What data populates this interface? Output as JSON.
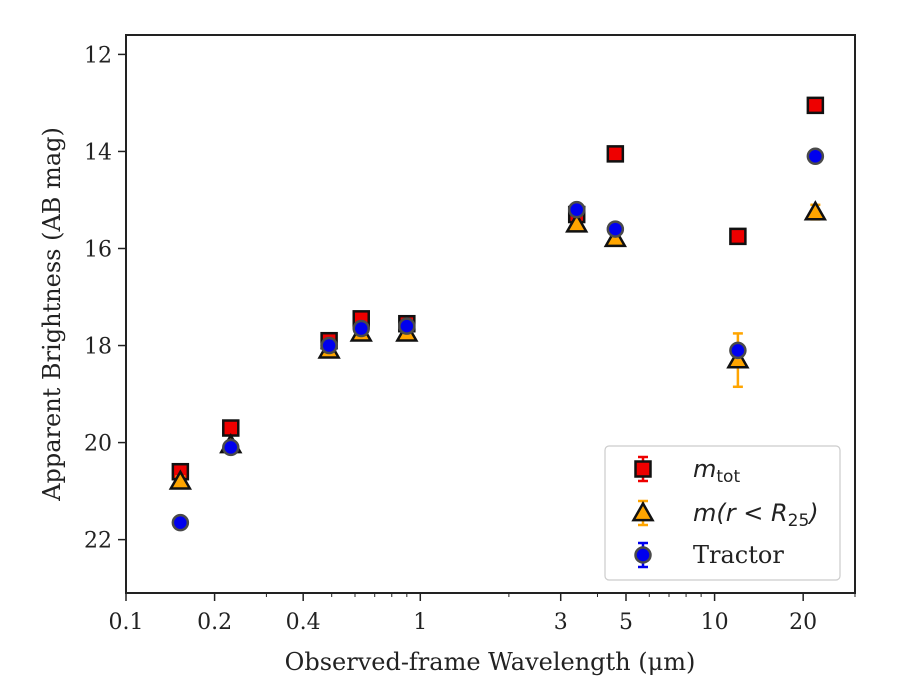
{
  "chart_data": {
    "type": "scatter",
    "xlabel": "Observed-frame Wavelength (μm)",
    "ylabel": "Apparent Brightness (AB mag)",
    "xscale": "log",
    "xlim": [
      0.1,
      30
    ],
    "ylim": [
      23.1,
      11.6
    ],
    "y_inverted": true,
    "grid": false,
    "legend_position": "bottom-right",
    "x_ticks": [
      {
        "value": 0.1,
        "label": "0.1"
      },
      {
        "value": 0.2,
        "label": "0.2"
      },
      {
        "value": 0.4,
        "label": "0.4"
      },
      {
        "value": 1,
        "label": "1"
      },
      {
        "value": 3,
        "label": "3"
      },
      {
        "value": 5,
        "label": "5"
      },
      {
        "value": 10,
        "label": "10"
      },
      {
        "value": 20,
        "label": "20"
      }
    ],
    "y_ticks": [
      {
        "value": 12,
        "label": "12"
      },
      {
        "value": 14,
        "label": "14"
      },
      {
        "value": 16,
        "label": "16"
      },
      {
        "value": 18,
        "label": "18"
      },
      {
        "value": 20,
        "label": "20"
      },
      {
        "value": 22,
        "label": "22"
      }
    ],
    "series": [
      {
        "name": "m_tot",
        "legend_main": "m",
        "legend_sub": "tot",
        "marker": "square",
        "color": "#ee0000",
        "x": [
          0.153,
          0.227,
          0.49,
          0.63,
          0.9,
          3.4,
          4.6,
          12.0,
          22.0
        ],
        "y": [
          20.6,
          19.7,
          17.9,
          17.45,
          17.55,
          15.3,
          14.05,
          15.75,
          13.05
        ],
        "yerr": [
          0.15,
          0.08,
          0.05,
          0.05,
          0.05,
          0.05,
          0.05,
          0.05,
          0.05
        ]
      },
      {
        "name": "m(r < R25)",
        "legend_main": "m(r < R",
        "legend_sub": "25",
        "legend_close": ")",
        "marker": "triangle",
        "color": "#ffa500",
        "x": [
          0.153,
          0.227,
          0.49,
          0.63,
          0.9,
          3.4,
          4.6,
          12.0,
          22.0
        ],
        "y": [
          20.8,
          20.05,
          18.1,
          17.75,
          17.75,
          15.5,
          15.8,
          18.3,
          15.25
        ],
        "yerr": [
          0.1,
          0.06,
          0.05,
          0.05,
          0.05,
          0.05,
          0.05,
          0.55,
          0.15
        ]
      },
      {
        "name": "Tractor",
        "legend_main": "Tractor",
        "marker": "circle",
        "color": "#0000ee",
        "x": [
          0.153,
          0.227,
          0.49,
          0.63,
          0.9,
          3.4,
          4.6,
          12.0,
          22.0
        ],
        "y": [
          21.65,
          20.1,
          18.0,
          17.65,
          17.6,
          15.2,
          15.6,
          18.1,
          14.1
        ],
        "yerr": [
          0.08,
          0.06,
          0.05,
          0.05,
          0.05,
          0.05,
          0.05,
          0.05,
          0.05
        ]
      }
    ]
  }
}
